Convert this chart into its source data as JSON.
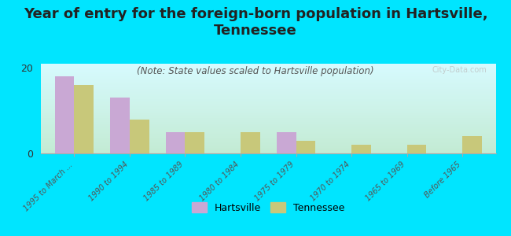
{
  "categories": [
    "1995 to March ...",
    "1990 to 1994",
    "1985 to 1989",
    "1980 to 1984",
    "1975 to 1979",
    "1970 to 1974",
    "1965 to 1969",
    "Before 1965"
  ],
  "hartsville_values": [
    18,
    13,
    5,
    0,
    5,
    0,
    0,
    0
  ],
  "tennessee_values": [
    16,
    8,
    5,
    5,
    3,
    2,
    2,
    4
  ],
  "hartsville_color": "#c9a8d4",
  "tennessee_color": "#c8c87a",
  "title": "Year of entry for the foreign-born population in Hartsville,\nTennessee",
  "subtitle": "(Note: State values scaled to Hartsville population)",
  "ylabel_val": "20",
  "ylim": [
    0,
    21
  ],
  "yticks": [
    0,
    20
  ],
  "background_color": "#00e5ff",
  "plot_bg_top": "#f0f5e0",
  "plot_bg_bottom": "#ffffff",
  "watermark": "City-Data.com",
  "legend_hartsville": "Hartsville",
  "legend_tennessee": "Tennessee",
  "title_fontsize": 13,
  "subtitle_fontsize": 8.5,
  "bar_width": 0.35,
  "tick_label_fontsize": 7
}
